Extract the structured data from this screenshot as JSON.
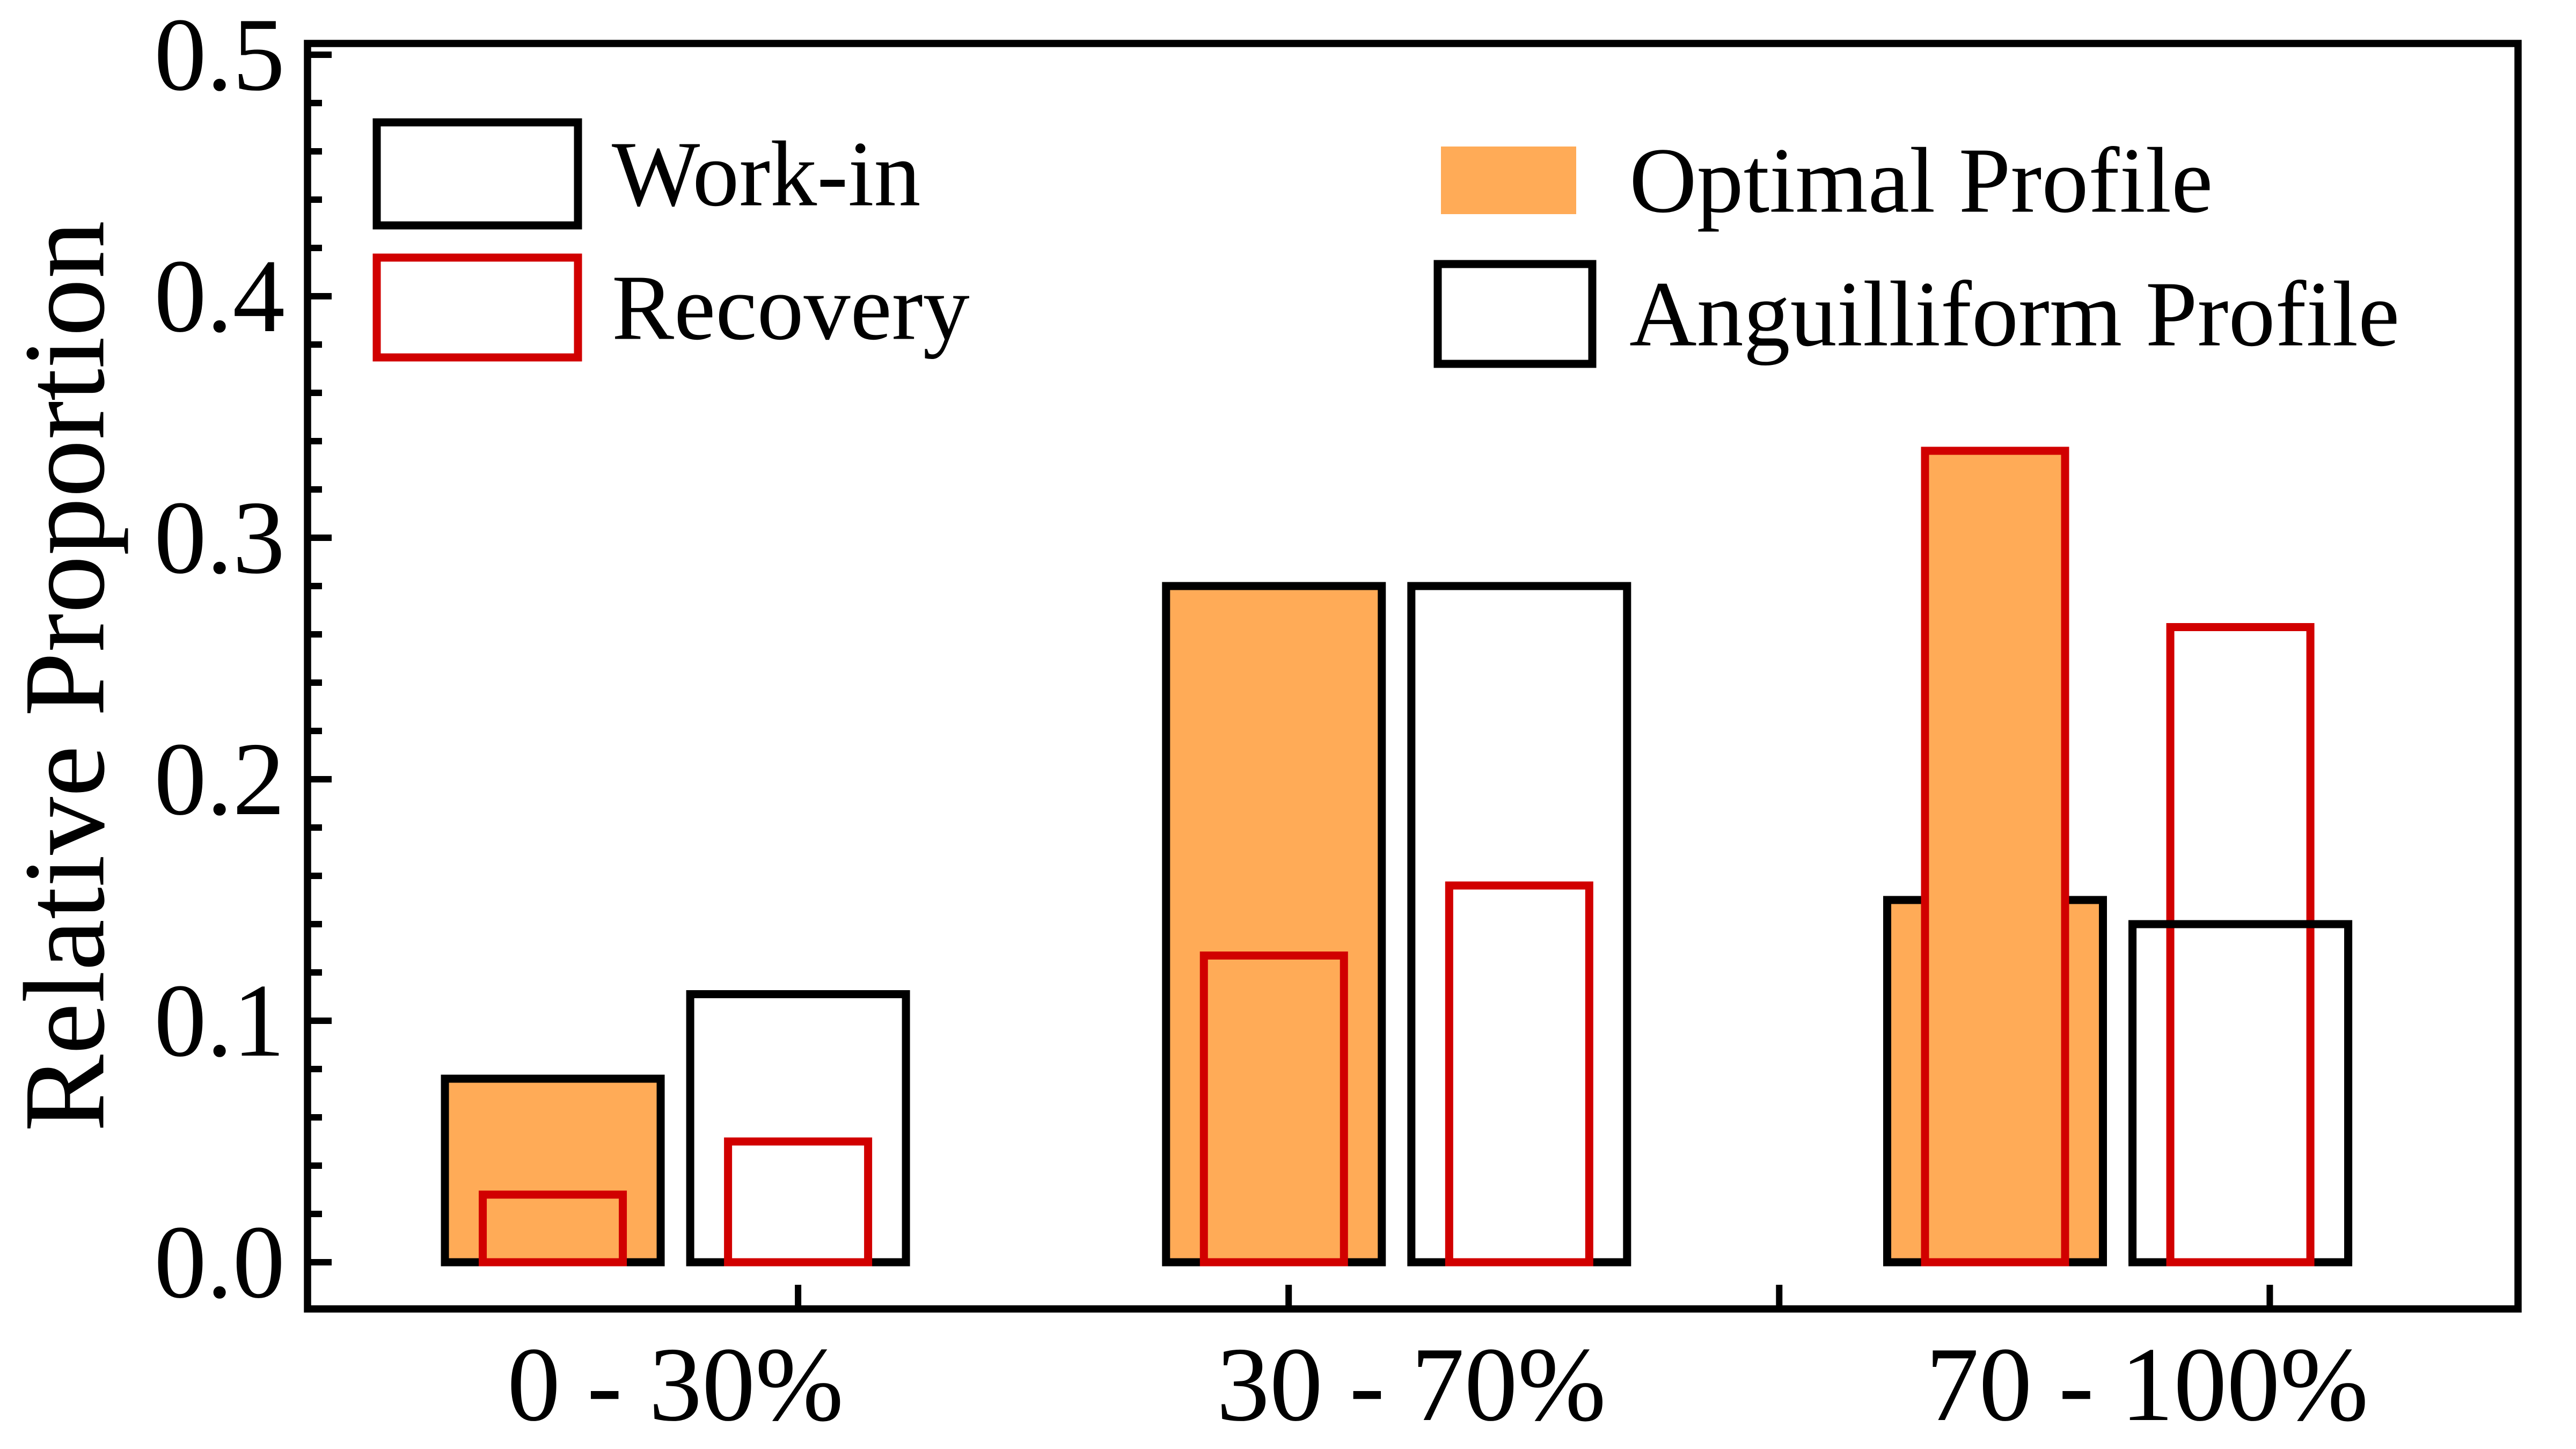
{
  "chart_data": {
    "type": "bar",
    "title": "",
    "ylabel": "Relative Proportion",
    "xlabel": "",
    "ylim": [
      0,
      0.5
    ],
    "yticks": [
      0.0,
      0.1,
      0.2,
      0.3,
      0.4,
      0.5
    ],
    "ytick_labels": [
      "0.0",
      "0.1",
      "0.2",
      "0.3",
      "0.4",
      "0.5"
    ],
    "minor_tick_step": 0.02,
    "grid": "off",
    "legend_position": "top-inside",
    "categories": [
      "0 - 30%",
      "30 - 70%",
      "70 - 100%"
    ],
    "profiles": [
      {
        "name": "Optimal Profile",
        "fill": "#FFAB57",
        "work_in": [
          0.076,
          0.28,
          0.15
        ],
        "recovery": [
          0.028,
          0.127,
          0.336
        ]
      },
      {
        "name": "Anguilliform Profile",
        "fill": "#FFFFFF",
        "work_in": [
          0.111,
          0.28,
          0.14
        ],
        "recovery": [
          0.05,
          0.156,
          0.263
        ]
      }
    ],
    "legend": {
      "work_in": "Work-in",
      "recovery": "Recovery",
      "optimal": "Optimal Profile",
      "anguilliform": "Anguilliform Profile"
    },
    "colors": {
      "work_in_edge": "#000000",
      "recovery_edge": "#D10000",
      "optimal_fill": "#FFAB57",
      "anguilliform_fill": "#FFFFFF",
      "axis": "#000000",
      "background": "#FFFFFF"
    }
  }
}
